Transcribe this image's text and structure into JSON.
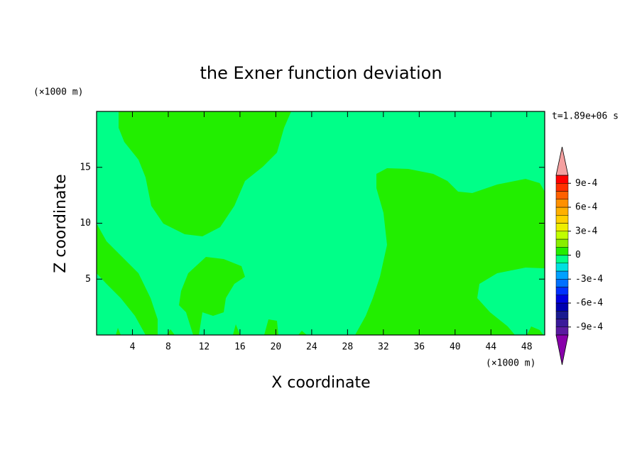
{
  "chart_data": {
    "type": "contour",
    "title": "the Exner function deviation",
    "xlabel": "X coordinate",
    "ylabel": "Z coordinate",
    "xunit": "(×1000 m)",
    "yunit": "(×1000 m)",
    "time_label": "t=1.89e+06 s",
    "xlim": [
      0,
      50
    ],
    "ylim": [
      0,
      20
    ],
    "xticks": [
      4,
      8,
      12,
      16,
      20,
      24,
      28,
      32,
      36,
      40,
      44,
      48
    ],
    "yticks": [
      5,
      10,
      15
    ],
    "colorbar": {
      "levels": [
        -0.001,
        -0.0009,
        -0.0008,
        -0.0007,
        -0.0006,
        -0.0005,
        -0.0004,
        -0.0003,
        -0.0002,
        -0.0001,
        0,
        0.0001,
        0.0002,
        0.0003,
        0.0004,
        0.0005,
        0.0006,
        0.0007,
        0.0008,
        0.0009,
        0.001
      ],
      "colors": [
        "#5a1aa0",
        "#3a1a9a",
        "#1a1a90",
        "#0000b0",
        "#0000e0",
        "#0030ff",
        "#0070ff",
        "#00a0ff",
        "#00e0e0",
        "#00ff88",
        "#22ee00",
        "#88ee00",
        "#c0ff00",
        "#eeee00",
        "#ffd000",
        "#ffb000",
        "#ff9000",
        "#ff6000",
        "#ff3000",
        "#ff0000"
      ],
      "under_color": "#8800aa",
      "over_color": "#f4a0a0",
      "ticks": [
        {
          "value": -0.0009,
          "label": "-9e-4"
        },
        {
          "value": -0.0006,
          "label": "-6e-4"
        },
        {
          "value": -0.0003,
          "label": "-3e-4"
        },
        0,
        {
          "value": 0.0003,
          "label": "3e-4"
        },
        {
          "value": 0.0006,
          "label": "6e-4"
        },
        {
          "value": 0.0009,
          "label": "9e-4"
        }
      ]
    }
  }
}
